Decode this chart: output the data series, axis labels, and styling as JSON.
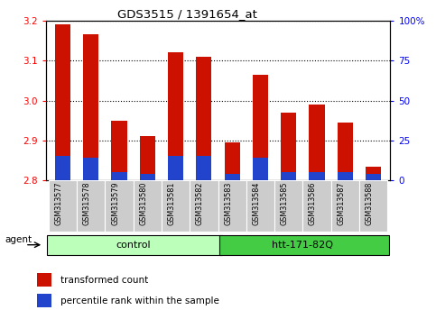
{
  "title": "GDS3515 / 1391654_at",
  "samples": [
    "GSM313577",
    "GSM313578",
    "GSM313579",
    "GSM313580",
    "GSM313581",
    "GSM313582",
    "GSM313583",
    "GSM313584",
    "GSM313585",
    "GSM313586",
    "GSM313587",
    "GSM313588"
  ],
  "transformed_count": [
    3.19,
    3.165,
    2.95,
    2.91,
    3.12,
    3.11,
    2.895,
    3.065,
    2.97,
    2.99,
    2.945,
    2.835
  ],
  "percentile_rank": [
    15,
    14,
    5,
    4,
    15,
    15,
    4,
    14,
    5,
    5,
    5,
    4
  ],
  "n_control": 6,
  "n_htt": 6,
  "ylim_left": [
    2.8,
    3.2
  ],
  "ylim_right": [
    0,
    100
  ],
  "yticks_left": [
    2.8,
    2.9,
    3.0,
    3.1,
    3.2
  ],
  "yticks_right": [
    0,
    25,
    50,
    75,
    100
  ],
  "bar_color": "#cc1100",
  "percentile_color": "#2244cc",
  "background_color": "#ffffff",
  "tickbox_color": "#cccccc",
  "control_color": "#bbffbb",
  "htt_color": "#44cc44",
  "agent_label": "agent",
  "group_label_control": "control",
  "group_label_htt": "htt-171-82Q",
  "legend_label_red": "transformed count",
  "legend_label_blue": "percentile rank within the sample",
  "bar_width": 0.55
}
